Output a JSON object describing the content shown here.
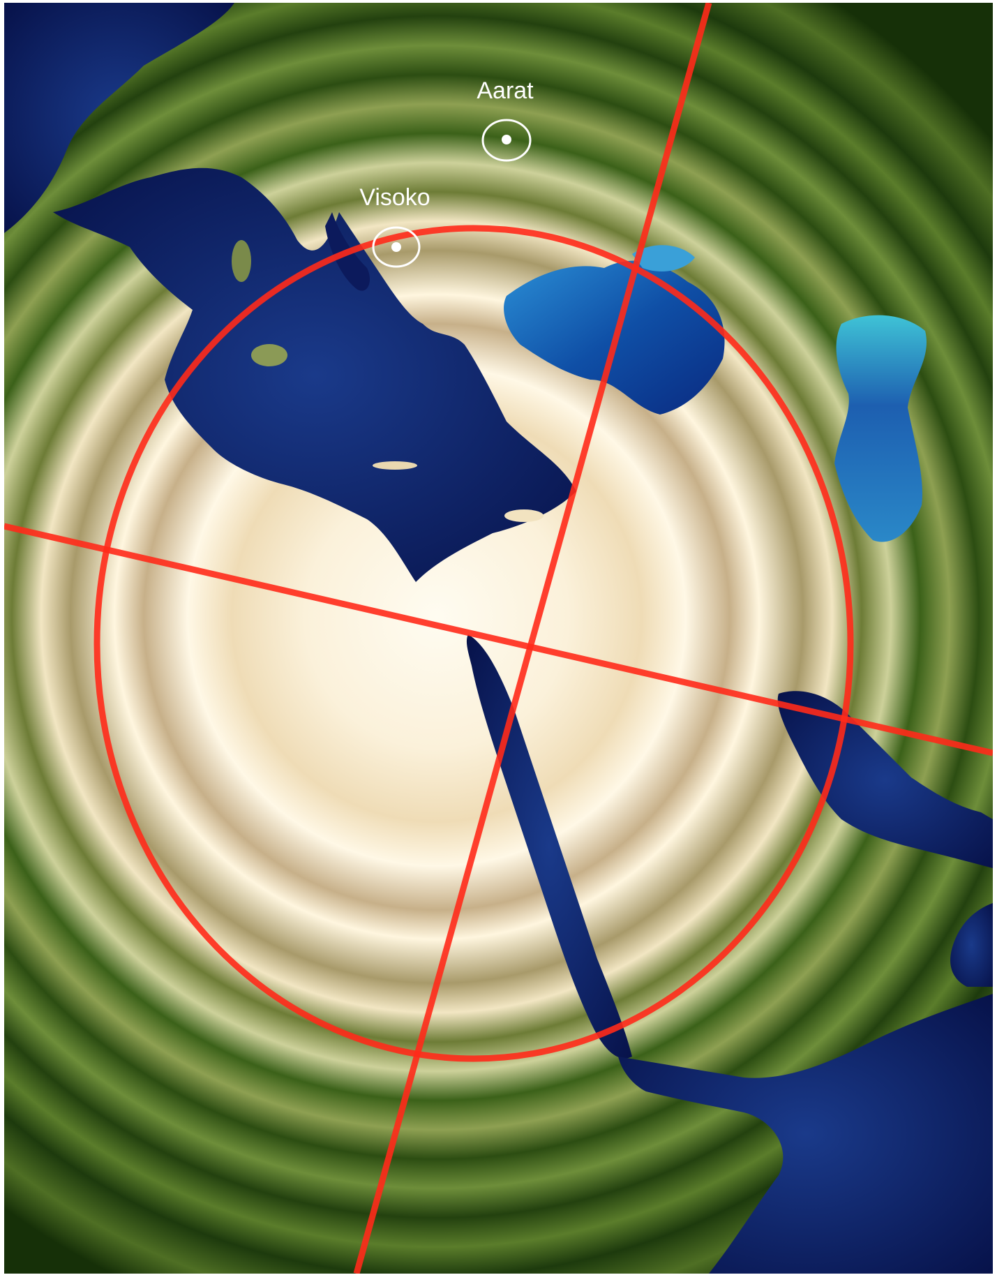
{
  "map": {
    "markers": [
      {
        "id": "aarat",
        "label": "Aarat"
      },
      {
        "id": "visoko",
        "label": "Visoko"
      }
    ],
    "colors": {
      "overlay_lines": "#ff2a1a",
      "marker": "#ffffff",
      "sea": "#0c1a5c",
      "land_green": "#3d6a1c",
      "land_desert": "#f3e6c6"
    }
  }
}
